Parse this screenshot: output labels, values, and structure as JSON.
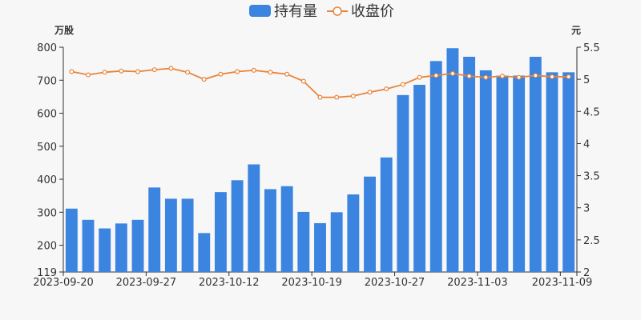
{
  "chart_data": {
    "type": "bar",
    "legend": {
      "position": "top-center",
      "items": [
        {
          "name": "持有量",
          "kind": "bar",
          "color": "#3b84e0"
        },
        {
          "name": "收盘价",
          "kind": "line",
          "color": "#e8843a"
        }
      ]
    },
    "y_left": {
      "unit": "万股",
      "min": 119,
      "max": 800,
      "ticks": [
        119,
        200,
        300,
        400,
        500,
        600,
        700,
        800
      ]
    },
    "y_right": {
      "unit": "元",
      "min": 2,
      "max": 5.5,
      "ticks": [
        "2",
        "2.5",
        "3",
        "3.5",
        "4",
        "4.5",
        "5",
        "5.5"
      ]
    },
    "x_tick_labels": [
      "2023-09-20",
      "2023-09-27",
      "2023-10-12",
      "2023-10-19",
      "2023-10-27",
      "2023-11-03",
      "2023-11-09"
    ],
    "x_tick_label_indices": [
      0,
      5,
      10,
      15,
      20,
      25,
      30
    ],
    "n_points": 31,
    "series": [
      {
        "name": "持有量",
        "type": "bar",
        "axis": "left",
        "values": [
          311,
          277,
          251,
          266,
          277,
          375,
          341,
          341,
          237,
          361,
          397,
          445,
          370,
          379,
          301,
          267,
          300,
          354,
          408,
          466,
          655,
          686,
          758,
          797,
          771,
          730,
          714,
          714,
          771,
          724,
          724
        ]
      },
      {
        "name": "收盘价",
        "type": "line",
        "axis": "right",
        "values": [
          5.12,
          5.07,
          5.11,
          5.13,
          5.12,
          5.15,
          5.17,
          5.11,
          5.0,
          5.08,
          5.12,
          5.14,
          5.11,
          5.08,
          4.97,
          4.72,
          4.72,
          4.74,
          4.8,
          4.85,
          4.92,
          5.03,
          5.06,
          5.09,
          5.05,
          5.03,
          5.05,
          5.03,
          5.06,
          5.04,
          5.04
        ]
      }
    ],
    "grid": false,
    "colors": {
      "bar": "#3b84e0",
      "line": "#e8843a",
      "marker_fill": "#ffffff",
      "axis": "#333333",
      "text": "#333333"
    }
  }
}
